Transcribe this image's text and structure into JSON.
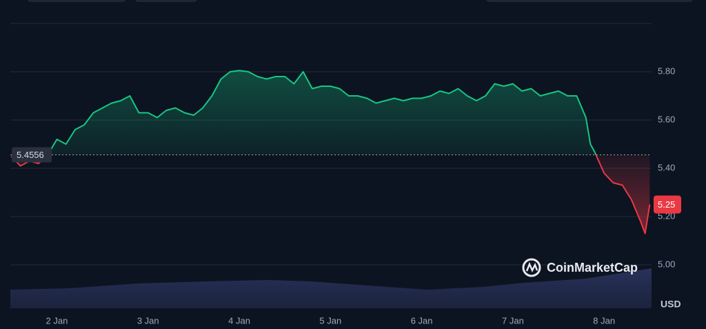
{
  "chart_data": {
    "type": "line",
    "x": [
      1.5,
      1.6,
      1.7,
      1.8,
      1.9,
      2.0,
      2.1,
      2.2,
      2.3,
      2.4,
      2.5,
      2.6,
      2.7,
      2.8,
      2.9,
      3.0,
      3.1,
      3.2,
      3.3,
      3.4,
      3.5,
      3.6,
      3.7,
      3.8,
      3.9,
      4.0,
      4.1,
      4.2,
      4.3,
      4.4,
      4.5,
      4.6,
      4.7,
      4.8,
      4.9,
      5.0,
      5.1,
      5.2,
      5.3,
      5.4,
      5.5,
      5.6,
      5.7,
      5.8,
      5.9,
      6.0,
      6.1,
      6.2,
      6.3,
      6.4,
      6.5,
      6.6,
      6.7,
      6.8,
      6.9,
      7.0,
      7.1,
      7.2,
      7.3,
      7.4,
      7.5,
      7.6,
      7.7,
      7.8,
      7.85,
      7.9,
      8.0,
      8.1,
      8.2,
      8.3,
      8.4,
      8.45,
      8.5
    ],
    "series": [
      {
        "color": "#16c784",
        "color_below": "#ea3943",
        "values": [
          5.45,
          5.41,
          5.43,
          5.42,
          5.455,
          5.52,
          5.5,
          5.56,
          5.58,
          5.63,
          5.65,
          5.67,
          5.68,
          5.7,
          5.63,
          5.63,
          5.61,
          5.64,
          5.65,
          5.63,
          5.62,
          5.65,
          5.7,
          5.77,
          5.8,
          5.805,
          5.8,
          5.78,
          5.77,
          5.78,
          5.78,
          5.75,
          5.8,
          5.73,
          5.74,
          5.74,
          5.73,
          5.7,
          5.7,
          5.69,
          5.67,
          5.68,
          5.69,
          5.68,
          5.69,
          5.69,
          5.7,
          5.72,
          5.71,
          5.73,
          5.7,
          5.68,
          5.7,
          5.75,
          5.74,
          5.75,
          5.72,
          5.73,
          5.7,
          5.71,
          5.72,
          5.7,
          5.7,
          5.61,
          5.5,
          5.465,
          5.38,
          5.34,
          5.33,
          5.27,
          5.18,
          5.13,
          5.25
        ]
      }
    ],
    "reference_value": 5.4556,
    "xlim": [
      1.49,
      8.52
    ],
    "xticks": [
      {
        "value": 2,
        "label": "2 Jan"
      },
      {
        "value": 3,
        "label": "3 Jan"
      },
      {
        "value": 4,
        "label": "4 Jan"
      },
      {
        "value": 5,
        "label": "5 Jan"
      },
      {
        "value": 6,
        "label": "6 Jan"
      },
      {
        "value": 7,
        "label": "7 Jan"
      },
      {
        "value": 8,
        "label": "8 Jan"
      }
    ],
    "ylim": [
      4.82,
      6.0
    ],
    "yticks": [
      {
        "value": 5.0,
        "label": "5.00"
      },
      {
        "value": 5.2,
        "label": "5.20"
      },
      {
        "value": 5.4,
        "label": "5.40"
      },
      {
        "value": 5.6,
        "label": "5.60"
      },
      {
        "value": 5.8,
        "label": "5.80"
      }
    ],
    "grid": true,
    "y_axis_label": "USD",
    "watermark": "CoinMarketCap"
  }
}
